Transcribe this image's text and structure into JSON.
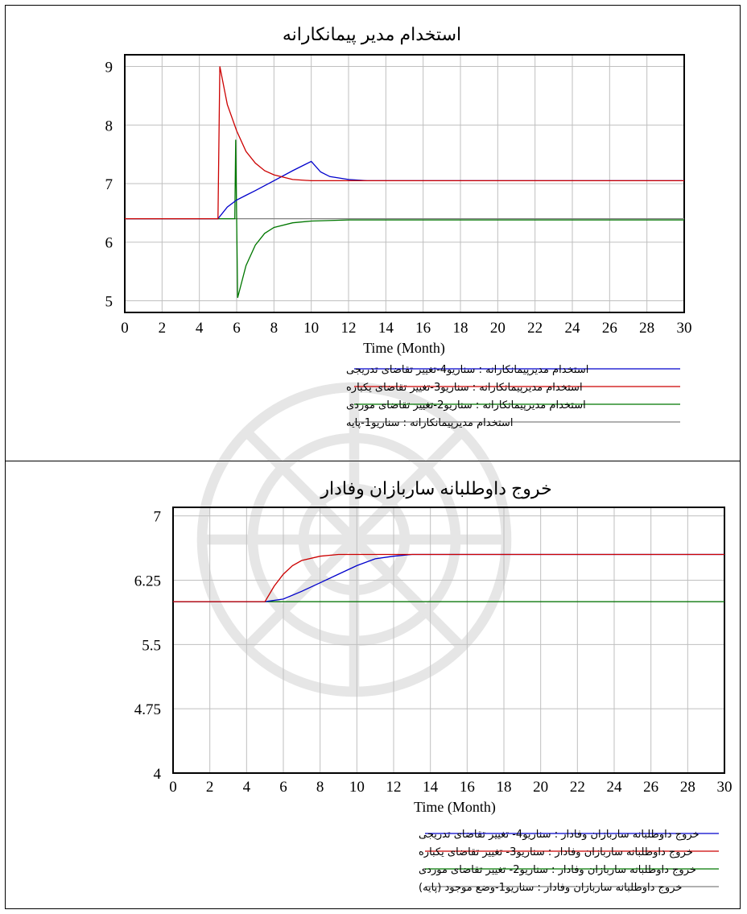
{
  "chart_data": [
    {
      "type": "line",
      "title": "استخدام مدیر پیمانکارانه",
      "xlabel": "Time (Month)",
      "xlim": [
        0,
        30
      ],
      "ylim": [
        4.8,
        9.2
      ],
      "xticks": [
        "0",
        "2",
        "4",
        "6",
        "8",
        "10",
        "12",
        "14",
        "16",
        "18",
        "20",
        "22",
        "24",
        "26",
        "28",
        "30"
      ],
      "yticks": [
        "9",
        "8",
        "7",
        "6",
        "5"
      ],
      "ytick_values": [
        9,
        8,
        7,
        6,
        5
      ],
      "grid": true,
      "legend_position": "bottom",
      "series": [
        {
          "name": "استخدام مدیرپیمانکارانه : سناریو4-تغییر تقاضای تدریجی",
          "color": "#0000cc",
          "x": [
            0,
            5,
            5.5,
            6,
            6.5,
            7,
            8,
            9,
            10,
            10.5,
            11,
            12,
            13,
            30
          ],
          "y": [
            6.4,
            6.4,
            6.6,
            6.72,
            6.8,
            6.88,
            7.05,
            7.22,
            7.38,
            7.2,
            7.12,
            7.07,
            7.05,
            7.05
          ]
        },
        {
          "name": "استخدام مدیرپیمانکارانه : سناریو3-تغییر تقاضای یکباره",
          "color": "#cc0000",
          "x": [
            0,
            5,
            5.1,
            5.5,
            6,
            6.5,
            7,
            7.5,
            8,
            9,
            10,
            12,
            30
          ],
          "y": [
            6.4,
            6.4,
            9.0,
            8.35,
            7.9,
            7.55,
            7.35,
            7.22,
            7.15,
            7.07,
            7.05,
            7.05,
            7.05
          ]
        },
        {
          "name": "استخدام مدیرپیمانکارانه : سناریو2-تغییر تقاضای موردی",
          "color": "#007700",
          "x": [
            0,
            5.9,
            5.95,
            6.05,
            6.5,
            7,
            7.5,
            8,
            9,
            10,
            12,
            30
          ],
          "y": [
            6.4,
            6.4,
            7.75,
            5.05,
            5.6,
            5.95,
            6.15,
            6.25,
            6.33,
            6.36,
            6.38,
            6.38
          ]
        },
        {
          "name": "استخدام مدیرپیمانکارانه : سناریو1-پایه",
          "color": "#808080",
          "x": [
            0,
            30
          ],
          "y": [
            6.4,
            6.4
          ]
        }
      ]
    },
    {
      "type": "line",
      "title": "خروج داوطلبانه ساربازان وفادار",
      "xlabel": "Time (Month)",
      "xlim": [
        0,
        30
      ],
      "ylim": [
        4,
        7.1
      ],
      "xticks": [
        "0",
        "2",
        "4",
        "6",
        "8",
        "10",
        "12",
        "14",
        "16",
        "18",
        "20",
        "22",
        "24",
        "26",
        "28",
        "30"
      ],
      "yticks": [
        "7",
        "6.25",
        "5.5",
        "4.75",
        "4"
      ],
      "ytick_values": [
        7,
        6.25,
        5.5,
        4.75,
        4
      ],
      "grid": true,
      "legend_position": "bottom",
      "series": [
        {
          "name": "خروج داوطلبانه ساربازان وفادار : سناریو4- تغییر تقاضای تدریجی",
          "color": "#0000cc",
          "x": [
            0,
            5,
            6,
            7,
            8,
            9,
            10,
            11,
            12,
            13,
            30
          ],
          "y": [
            6.0,
            6.0,
            6.03,
            6.12,
            6.22,
            6.32,
            6.42,
            6.5,
            6.53,
            6.55,
            6.55
          ]
        },
        {
          "name": "خروج داوطلبانه ساربازان وفادار : سناریو3- تغییر تقاضای یکباره",
          "color": "#cc0000",
          "x": [
            0,
            5,
            5.5,
            6,
            6.5,
            7,
            8,
            9,
            10,
            12,
            30
          ],
          "y": [
            6.0,
            6.0,
            6.18,
            6.32,
            6.42,
            6.48,
            6.53,
            6.55,
            6.55,
            6.55,
            6.55
          ]
        },
        {
          "name": "خروج داوطلبانه ساربازان وفادار : سناریو2- تغییر تقاضای موردی",
          "color": "#007700",
          "x": [
            0,
            5,
            8,
            30
          ],
          "y": [
            6.0,
            6.0,
            6.0,
            6.0
          ]
        },
        {
          "name": "خروج داوطلبانه ساربازان وفادار : سناریو1-وضع موجود (پایه)",
          "color": "#808080",
          "x": [
            0,
            30
          ],
          "y": [
            6.0,
            6.0
          ]
        }
      ]
    }
  ]
}
